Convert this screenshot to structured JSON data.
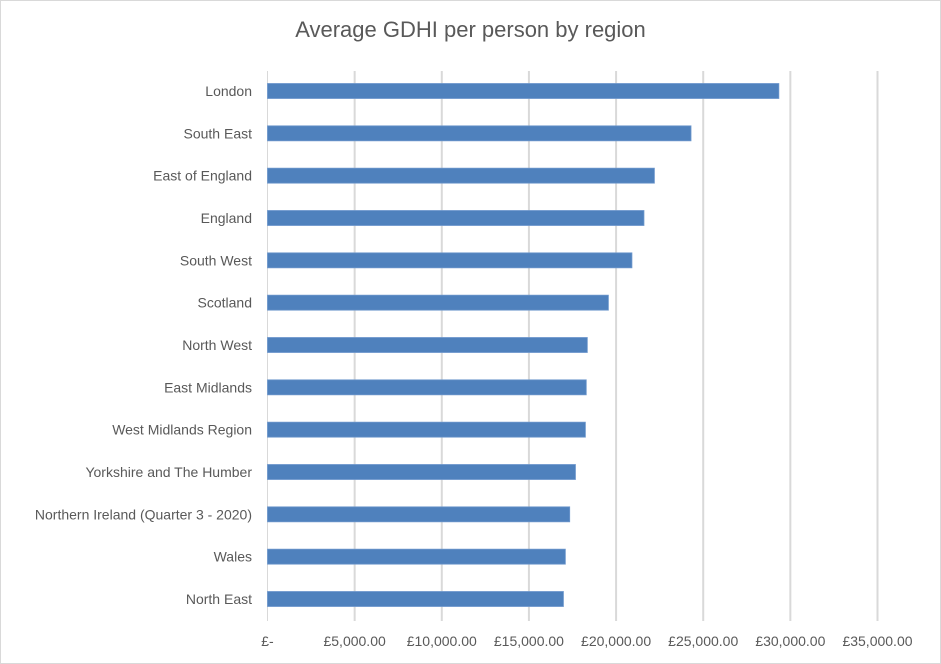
{
  "chart_data": {
    "type": "bar",
    "orientation": "horizontal",
    "title": "Average GDHI per person by region",
    "xlabel": "",
    "ylabel": "",
    "categories": [
      "London",
      "South East",
      "East of England",
      "England",
      "South West",
      "Scotland",
      "North West",
      "East Midlands",
      "West Midlands Region",
      "Yorkshire and The Humber",
      "Northern Ireland (Quarter 3 - 2020)",
      "Wales",
      "North East"
    ],
    "values": [
      29340,
      24300,
      22200,
      21600,
      20910,
      19560,
      18350,
      18290,
      18240,
      17670,
      17340,
      17090,
      16980
    ],
    "xlim": [
      0,
      35000
    ],
    "x_ticks": [
      0,
      5000,
      10000,
      15000,
      20000,
      25000,
      30000,
      35000
    ],
    "x_tick_labels": [
      "£-",
      "£5,000.00",
      "£10,000.00",
      "£15,000.00",
      "£20,000.00",
      "£25,000.00",
      "£30,000.00",
      "£35,000.00"
    ],
    "grid": "vertical",
    "legend": "none",
    "bar_color": "#4f81bd",
    "grid_color": "#d9d9d9"
  }
}
